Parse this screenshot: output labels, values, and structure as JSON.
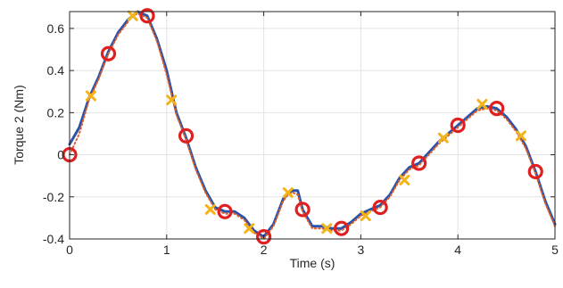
{
  "chart_data": {
    "type": "line",
    "title": "",
    "xlabel": "Time (s)",
    "ylabel": "Torque 2 (Nm)",
    "xlim": [
      0,
      5
    ],
    "ylim": [
      -0.4,
      0.68
    ],
    "grid": true,
    "x_ticks": [
      {
        "value": 0,
        "label": "0"
      },
      {
        "value": 1,
        "label": "1"
      },
      {
        "value": 2,
        "label": "2"
      },
      {
        "value": 3,
        "label": "3"
      },
      {
        "value": 4,
        "label": "4"
      },
      {
        "value": 5,
        "label": "5"
      }
    ],
    "y_ticks": [
      {
        "value": -0.4,
        "label": "-0.4"
      },
      {
        "value": -0.2,
        "label": "-0.2"
      },
      {
        "value": 0,
        "label": "0"
      },
      {
        "value": 0.2,
        "label": "0.2"
      },
      {
        "value": 0.4,
        "label": "0.4"
      },
      {
        "value": 0.6,
        "label": "0.6"
      }
    ],
    "series": [
      {
        "style": "solid-line",
        "color": "#2b52a8",
        "x": [
          0,
          0.1,
          0.2,
          0.3,
          0.4,
          0.5,
          0.6,
          0.65,
          0.7,
          0.8,
          0.9,
          1.0,
          1.1,
          1.2,
          1.3,
          1.4,
          1.5,
          1.6,
          1.7,
          1.8,
          1.9,
          2.0,
          2.1,
          2.2,
          2.25,
          2.3,
          2.35,
          2.4,
          2.5,
          2.6,
          2.7,
          2.8,
          2.9,
          3.0,
          3.1,
          3.2,
          3.3,
          3.4,
          3.5,
          3.6,
          3.7,
          3.8,
          3.9,
          4.0,
          4.1,
          4.2,
          4.3,
          4.4,
          4.5,
          4.6,
          4.7,
          4.8,
          4.9,
          5.0
        ],
        "y": [
          0.05,
          0.13,
          0.27,
          0.37,
          0.49,
          0.58,
          0.64,
          0.66,
          0.68,
          0.66,
          0.55,
          0.4,
          0.2,
          0.08,
          -0.06,
          -0.17,
          -0.25,
          -0.27,
          -0.27,
          -0.3,
          -0.36,
          -0.39,
          -0.33,
          -0.21,
          -0.18,
          -0.17,
          -0.17,
          -0.26,
          -0.34,
          -0.34,
          -0.35,
          -0.35,
          -0.32,
          -0.28,
          -0.26,
          -0.24,
          -0.19,
          -0.11,
          -0.06,
          -0.04,
          0.01,
          0.06,
          0.1,
          0.14,
          0.18,
          0.22,
          0.23,
          0.22,
          0.18,
          0.12,
          0.04,
          -0.08,
          -0.22,
          -0.33
        ]
      },
      {
        "style": "dotted-line",
        "color": "#e0602a",
        "x": [
          0,
          0.1,
          0.2,
          0.3,
          0.4,
          0.5,
          0.6,
          0.65,
          0.7,
          0.8,
          0.9,
          1.0,
          1.1,
          1.2,
          1.3,
          1.4,
          1.5,
          1.6,
          1.7,
          1.8,
          1.9,
          2.0,
          2.1,
          2.2,
          2.25,
          2.3,
          2.35,
          2.4,
          2.5,
          2.6,
          2.7,
          2.8,
          2.9,
          3.0,
          3.1,
          3.2,
          3.3,
          3.4,
          3.5,
          3.6,
          3.7,
          3.8,
          3.9,
          4.0,
          4.1,
          4.2,
          4.3,
          4.4,
          4.5,
          4.6,
          4.7,
          4.8,
          4.9,
          5.0
        ],
        "y": [
          0.0,
          0.1,
          0.26,
          0.36,
          0.48,
          0.57,
          0.63,
          0.66,
          0.67,
          0.65,
          0.54,
          0.38,
          0.19,
          0.07,
          -0.07,
          -0.18,
          -0.26,
          -0.28,
          -0.28,
          -0.31,
          -0.37,
          -0.4,
          -0.34,
          -0.22,
          -0.19,
          -0.18,
          -0.19,
          -0.27,
          -0.35,
          -0.35,
          -0.36,
          -0.36,
          -0.33,
          -0.29,
          -0.27,
          -0.25,
          -0.2,
          -0.12,
          -0.07,
          -0.05,
          0.0,
          0.05,
          0.09,
          0.13,
          0.17,
          0.21,
          0.22,
          0.21,
          0.17,
          0.11,
          0.03,
          -0.09,
          -0.23,
          -0.34
        ]
      },
      {
        "style": "circle-markers",
        "color": "#e02020",
        "x": [
          0,
          0.4,
          0.8,
          1.2,
          1.6,
          2.0,
          2.4,
          2.8,
          3.2,
          3.6,
          4.0,
          4.4,
          4.8
        ],
        "y": [
          0.0,
          0.48,
          0.66,
          0.09,
          -0.27,
          -0.39,
          -0.26,
          -0.35,
          -0.25,
          -0.04,
          0.14,
          0.22,
          -0.08
        ]
      },
      {
        "style": "x-markers",
        "color": "#f2b418",
        "x": [
          0.22,
          0.65,
          1.05,
          1.45,
          1.85,
          2.25,
          2.65,
          3.05,
          3.45,
          3.85,
          4.25,
          4.65
        ],
        "y": [
          0.28,
          0.66,
          0.26,
          -0.26,
          -0.35,
          -0.18,
          -0.35,
          -0.29,
          -0.12,
          0.08,
          0.24,
          0.09
        ]
      }
    ]
  }
}
